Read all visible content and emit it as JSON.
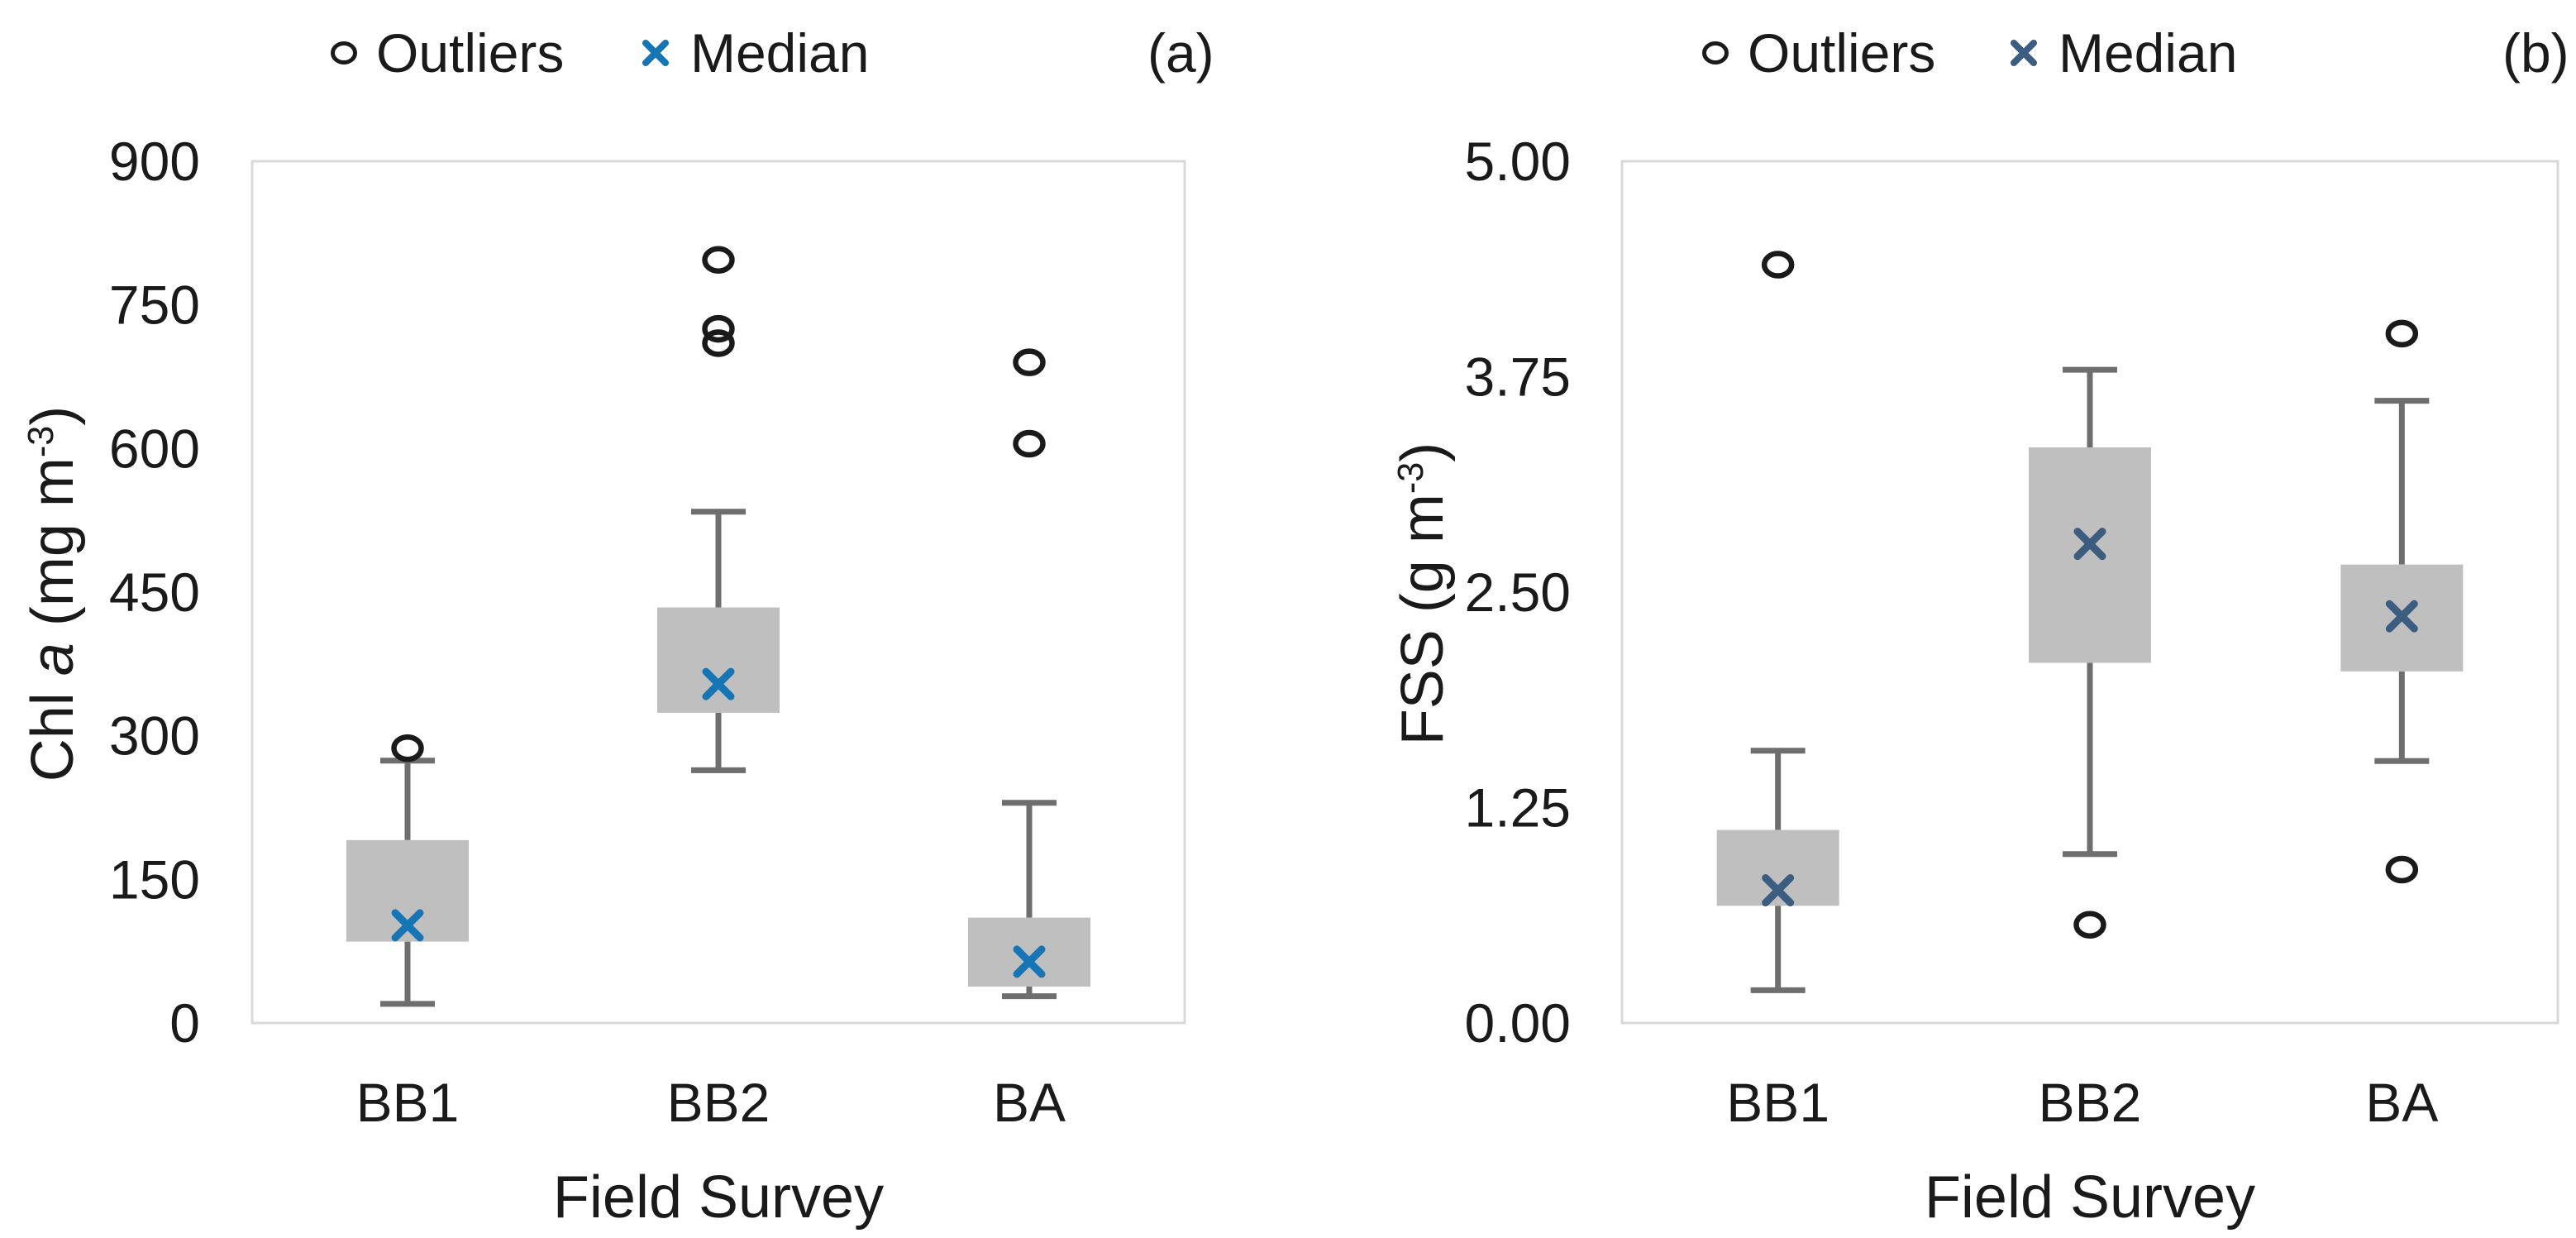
{
  "figure": {
    "background": "#ffffff"
  },
  "style": {
    "box_fill": "#bfbfbf",
    "whisker_color": "#6e6e6e",
    "outlier_color": "#1a1a1a",
    "plot_border_color": "#d9d9d9",
    "text_color": "#1a1a1a"
  },
  "chart_data": [
    {
      "type": "box",
      "panel_tag": "(a)",
      "legend": [
        "Outliers",
        "Median"
      ],
      "legend_marker_outlier": "hollow-circle",
      "legend_marker_median": "x-cross",
      "xlabel": "Field Survey",
      "ylabel": "Chl a (mg m⁻³)",
      "ylabel_parts": {
        "pre": "Chl ",
        "italic": "a",
        "mid": " (mg m",
        "sup": "-3",
        "post": ")"
      },
      "ylim": [
        0,
        900
      ],
      "yticks": [
        0,
        150,
        300,
        450,
        600,
        750,
        900
      ],
      "ytick_labels": [
        "0",
        "150",
        "300",
        "450",
        "600",
        "750",
        "900"
      ],
      "categories": [
        "BB1",
        "BB2",
        "BA"
      ],
      "grid": false,
      "legend_position": "top",
      "marker_color": "#1575b5",
      "series": [
        {
          "category": "BB1",
          "whisker_low": 20,
          "q1": 85,
          "median": 102,
          "q3": 191,
          "whisker_high": 274,
          "outliers": [
            287
          ]
        },
        {
          "category": "BB2",
          "whisker_low": 264,
          "q1": 324,
          "median": 354,
          "q3": 434,
          "whisker_high": 534,
          "outliers": [
            797,
            725,
            710
          ]
        },
        {
          "category": "BA",
          "whisker_low": 28,
          "q1": 38,
          "median": 64,
          "q3": 110,
          "whisker_high": 230,
          "outliers": [
            690,
            605
          ]
        }
      ]
    },
    {
      "type": "box",
      "panel_tag": "(b)",
      "legend": [
        "Outliers",
        "Median"
      ],
      "legend_marker_outlier": "hollow-circle",
      "legend_marker_median": "x-cross",
      "xlabel": "Field Survey",
      "ylabel": "FSS (g m⁻³)",
      "ylabel_parts": {
        "pre": "FSS (g m",
        "italic": "",
        "mid": "",
        "sup": "-3",
        "post": ")"
      },
      "ylim": [
        0,
        5
      ],
      "yticks": [
        0,
        1.25,
        2.5,
        3.75,
        5
      ],
      "ytick_labels": [
        "0.00",
        "1.25",
        "2.50",
        "3.75",
        "5.00"
      ],
      "categories": [
        "BB1",
        "BB2",
        "BA"
      ],
      "grid": false,
      "legend_position": "top",
      "marker_color": "#3c5c80",
      "series": [
        {
          "category": "BB1",
          "whisker_low": 0.19,
          "q1": 0.68,
          "median": 0.77,
          "q3": 1.12,
          "whisker_high": 1.58,
          "outliers": [
            4.4
          ]
        },
        {
          "category": "BB2",
          "whisker_low": 0.98,
          "q1": 2.09,
          "median": 2.78,
          "q3": 3.34,
          "whisker_high": 3.79,
          "outliers": [
            0.57
          ]
        },
        {
          "category": "BA",
          "whisker_low": 1.52,
          "q1": 2.04,
          "median": 2.36,
          "q3": 2.66,
          "whisker_high": 3.61,
          "outliers": [
            4.0,
            0.89
          ]
        }
      ]
    }
  ]
}
